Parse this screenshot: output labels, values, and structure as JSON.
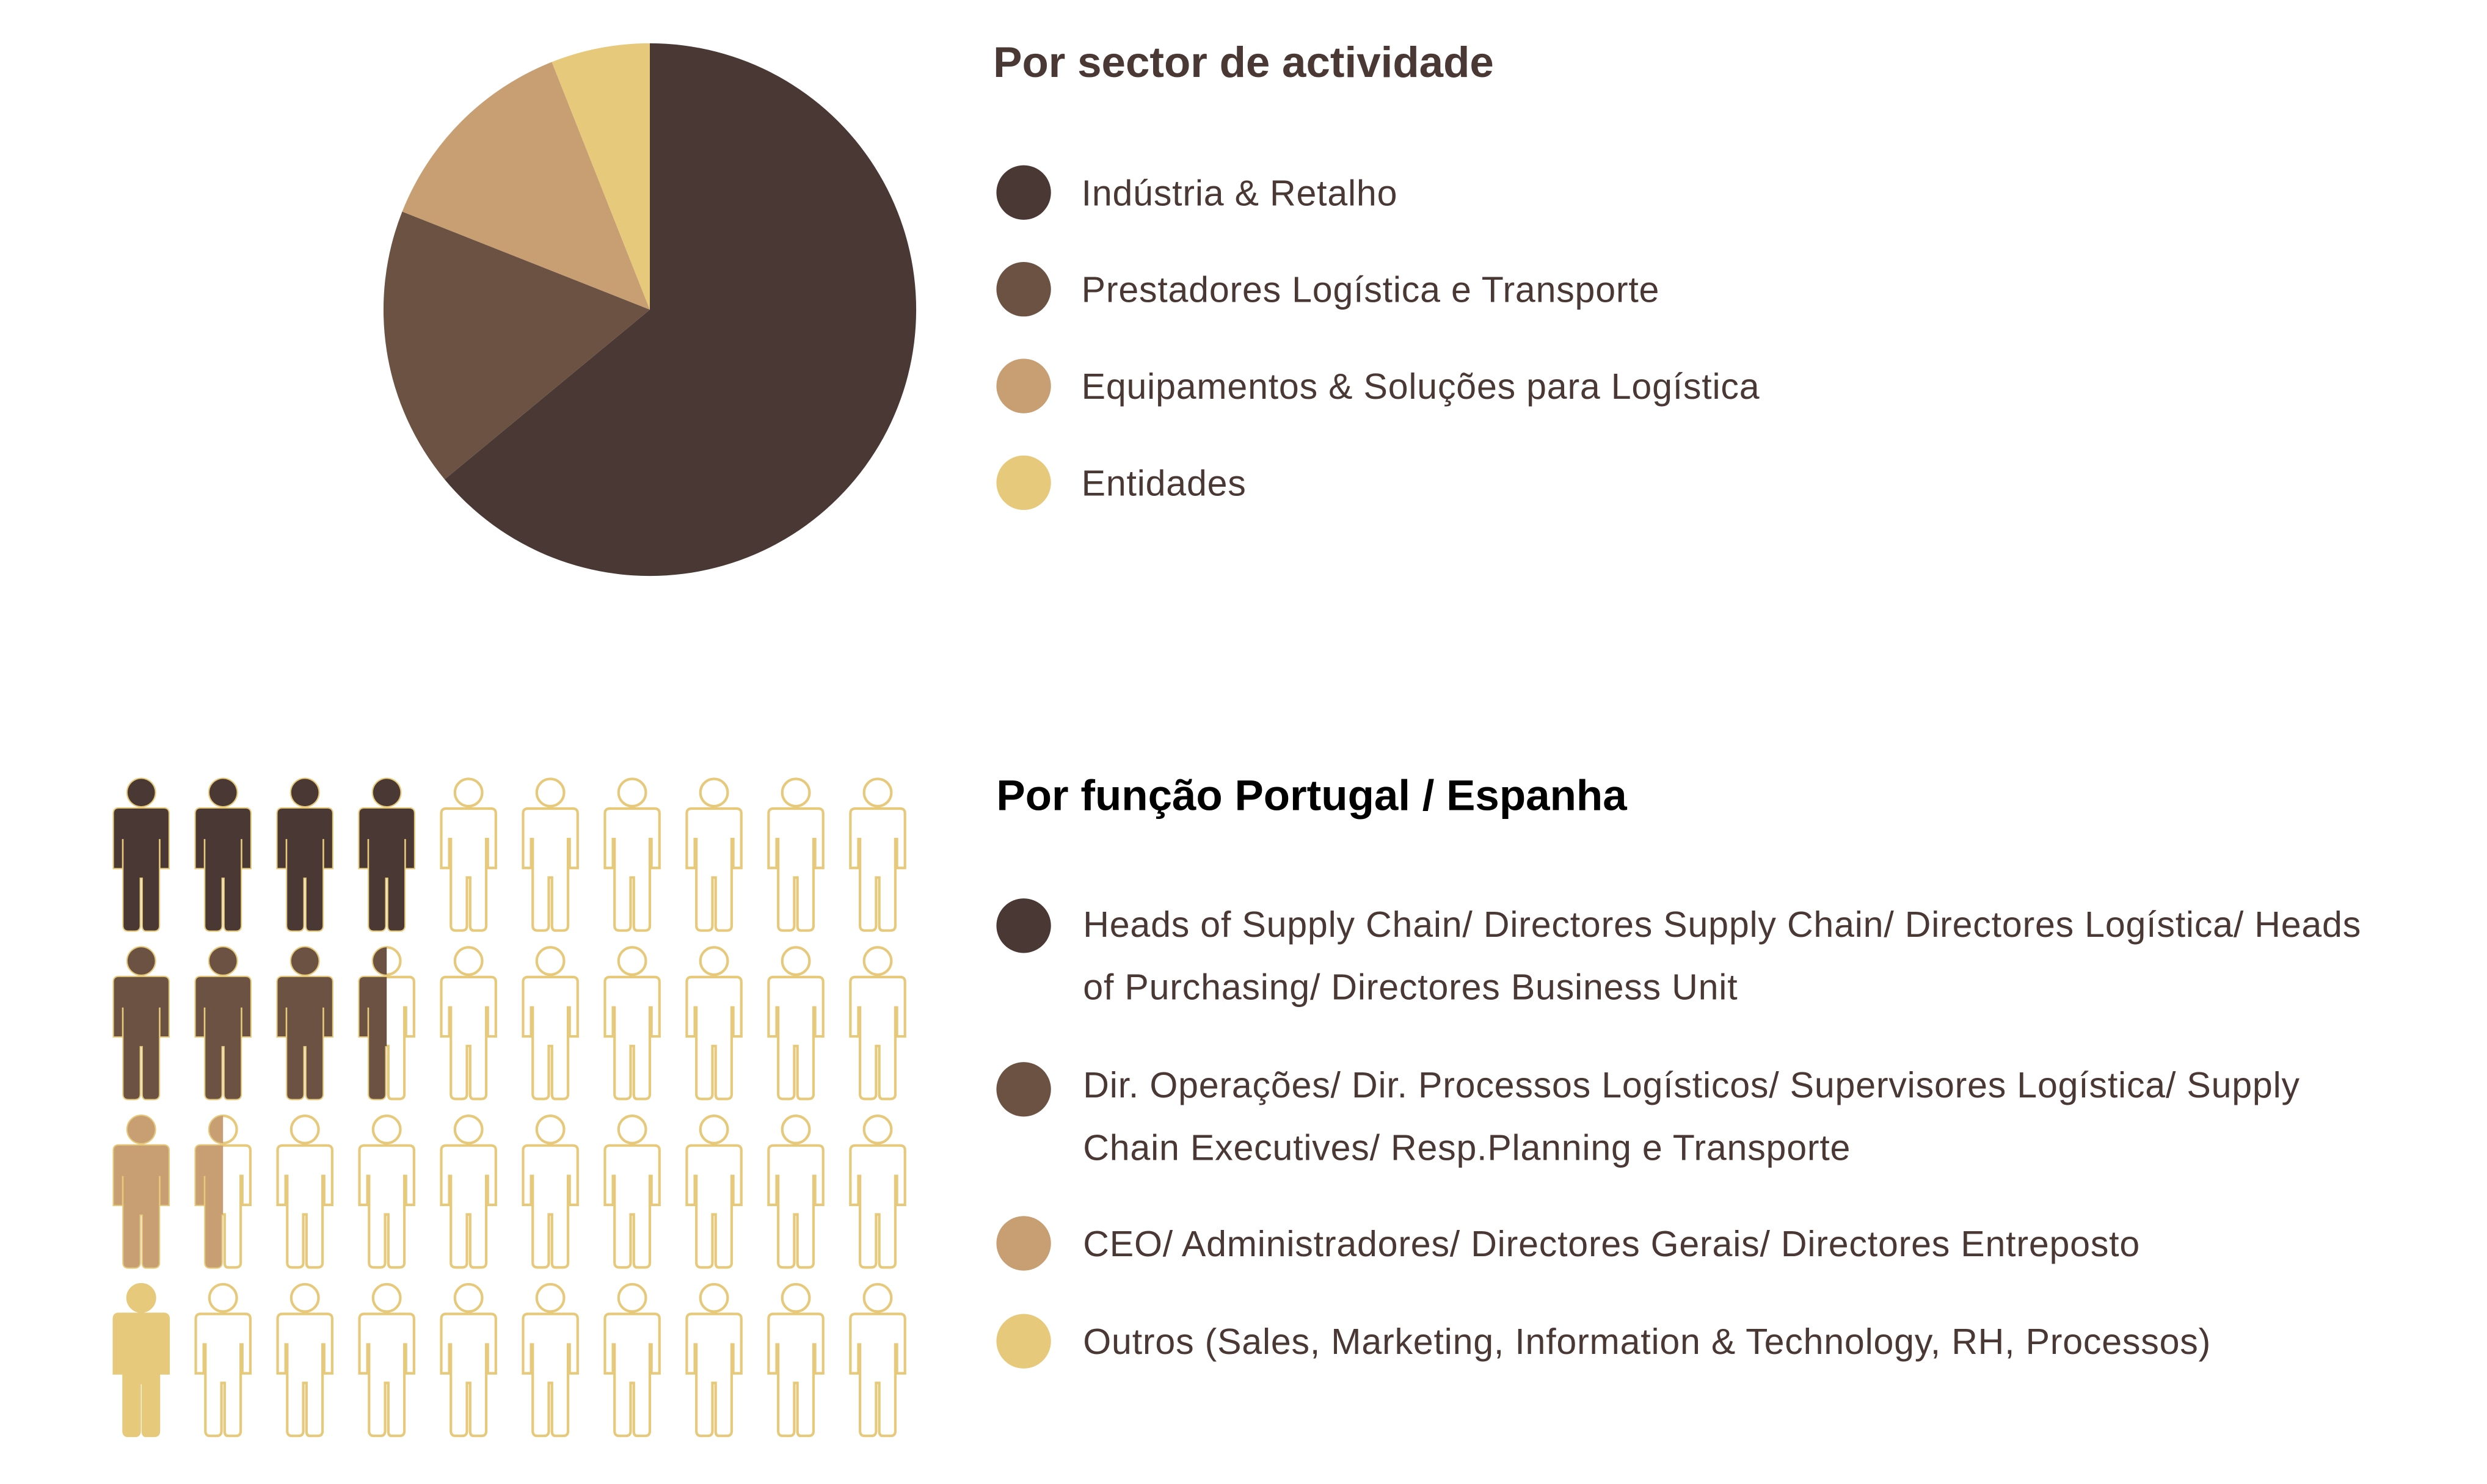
{
  "chart_data": [
    {
      "type": "pie",
      "title": "Por sector de actividade",
      "categories": [
        "Indústria & Retalho",
        "Prestadores Logística e Transporte",
        "Equipamentos & Soluções para Logística",
        "Entidades"
      ],
      "values": [
        64,
        17,
        13,
        6
      ],
      "colors": [
        "#4a3835",
        "#6b5242",
        "#c79f73",
        "#e6c97a"
      ]
    },
    {
      "type": "pictogram",
      "title": "Por função Portugal / Espanha",
      "categories": [
        "Heads of Supply Chain/ Directores Supply Chain/ Directores Logística/ Heads of Purchasing/ Directores Business Unit",
        "Dir. Operações/ Dir. Processos Logísticos/ Supervisores Logística/ Supply Chain Executives/ Resp.Planning e Transporte",
        "CEO/ Administradores/ Directores Gerais/ Directores Entreposto",
        "Outros (Sales, Marketing, Information & Technology, RH, Processos)"
      ],
      "values": [
        4,
        3.5,
        1.5,
        1
      ],
      "colors": [
        "#4a3835",
        "#6b5242",
        "#c79f73",
        "#e6c97a"
      ],
      "empty_color": "#e6c97a"
    }
  ]
}
